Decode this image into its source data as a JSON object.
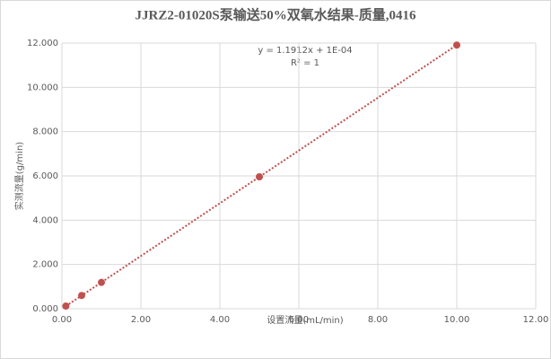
{
  "chart_data": {
    "type": "scatter",
    "title": "JJRZ2-01020S泵输送50%双氧水结果-质量,0416",
    "x_label": "设置流量(mL/min)",
    "y_label": "实测流量(g/min)",
    "annotations": [
      "y = 1.1912x + 1E-04",
      "R² = 1"
    ],
    "series": [
      {
        "name": "实测流量",
        "color": "#c0504d",
        "x": [
          0.1,
          0.5,
          1,
          5,
          10
        ],
        "values": [
          0.12,
          0.6,
          1.19,
          5.96,
          11.91
        ]
      }
    ],
    "trendline": {
      "slope": 1.1912,
      "intercept": 0.0001,
      "color": "#c0504d"
    },
    "xlim": [
      0,
      12
    ],
    "xticks": [
      {
        "value": 0,
        "label": "0.00"
      },
      {
        "value": 2,
        "label": "2.00"
      },
      {
        "value": 4,
        "label": "4.00"
      },
      {
        "value": 6,
        "label": "6.00"
      },
      {
        "value": 8,
        "label": "8.00"
      },
      {
        "value": 10,
        "label": "10.00"
      },
      {
        "value": 12,
        "label": "12.00"
      }
    ],
    "ylim": [
      0,
      12
    ],
    "yticks": [
      {
        "value": 0,
        "label": "0.000"
      },
      {
        "value": 2,
        "label": "2.000"
      },
      {
        "value": 4,
        "label": "4.000"
      },
      {
        "value": 6,
        "label": "6.000"
      },
      {
        "value": 8,
        "label": "8.000"
      },
      {
        "value": 10,
        "label": "10.000"
      },
      {
        "value": 12,
        "label": "12.000"
      }
    ],
    "grid": true
  }
}
